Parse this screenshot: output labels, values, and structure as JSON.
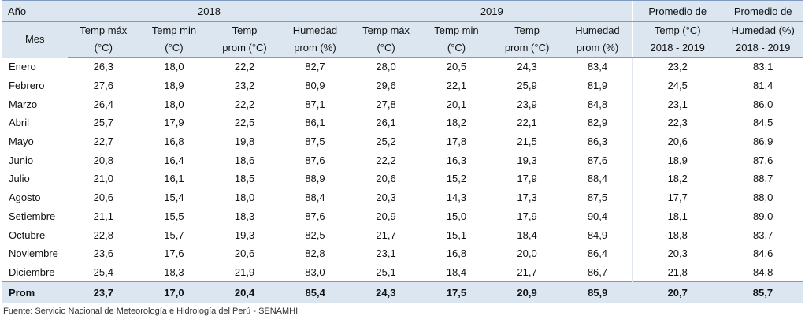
{
  "header": {
    "anio_label": "Año",
    "mes_label": "Mes",
    "year_2018": "2018",
    "year_2019": "2019",
    "prom_temp_top": "Promedio de",
    "prom_temp_mid": "Temp (°C)",
    "prom_temp_bot": "2018 - 2019",
    "prom_hum_top": "Promedio de",
    "prom_hum_mid": "Humedad (%)",
    "prom_hum_bot": "2018 - 2019",
    "cols": [
      {
        "top": "Temp máx",
        "bot": "(°C)"
      },
      {
        "top": "Temp min",
        "bot": "(°C)"
      },
      {
        "top": "Temp",
        "bot": "prom (°C)"
      },
      {
        "top": "Humedad",
        "bot": "prom (%)"
      },
      {
        "top": "Temp máx",
        "bot": "(°C)"
      },
      {
        "top": "Temp min",
        "bot": "(°C)"
      },
      {
        "top": "Temp",
        "bot": "prom (°C)"
      },
      {
        "top": "Humedad",
        "bot": "prom (%)"
      }
    ]
  },
  "rows": [
    {
      "mes": "Enero",
      "v": [
        "26,3",
        "18,0",
        "22,2",
        "82,7",
        "28,0",
        "20,5",
        "24,3",
        "83,4",
        "23,2",
        "83,1"
      ]
    },
    {
      "mes": "Febrero",
      "v": [
        "27,6",
        "18,9",
        "23,2",
        "80,9",
        "29,6",
        "22,1",
        "25,9",
        "81,9",
        "24,5",
        "81,4"
      ]
    },
    {
      "mes": "Marzo",
      "v": [
        "26,4",
        "18,0",
        "22,2",
        "87,1",
        "27,8",
        "20,1",
        "23,9",
        "84,8",
        "23,1",
        "86,0"
      ]
    },
    {
      "mes": "Abril",
      "v": [
        "25,7",
        "17,9",
        "22,5",
        "86,1",
        "26,1",
        "18,2",
        "22,1",
        "82,9",
        "22,3",
        "84,5"
      ]
    },
    {
      "mes": "Mayo",
      "v": [
        "22,7",
        "16,8",
        "19,8",
        "87,5",
        "25,2",
        "17,8",
        "21,5",
        "86,3",
        "20,6",
        "86,9"
      ]
    },
    {
      "mes": "Junio",
      "v": [
        "20,8",
        "16,4",
        "18,6",
        "87,6",
        "22,2",
        "16,3",
        "19,3",
        "87,6",
        "18,9",
        "87,6"
      ]
    },
    {
      "mes": "Julio",
      "v": [
        "21,0",
        "16,1",
        "18,5",
        "88,9",
        "20,6",
        "15,2",
        "17,9",
        "88,4",
        "18,2",
        "88,7"
      ]
    },
    {
      "mes": "Agosto",
      "v": [
        "20,6",
        "15,4",
        "18,0",
        "88,4",
        "20,3",
        "14,3",
        "17,3",
        "87,5",
        "17,7",
        "88,0"
      ]
    },
    {
      "mes": "Setiembre",
      "v": [
        "21,1",
        "15,5",
        "18,3",
        "87,6",
        "20,9",
        "15,0",
        "17,9",
        "90,4",
        "18,1",
        "89,0"
      ]
    },
    {
      "mes": "Octubre",
      "v": [
        "22,8",
        "15,7",
        "19,3",
        "82,5",
        "21,7",
        "15,1",
        "18,4",
        "84,9",
        "18,8",
        "83,7"
      ]
    },
    {
      "mes": "Noviembre",
      "v": [
        "23,6",
        "17,6",
        "20,6",
        "82,8",
        "23,1",
        "16,8",
        "20,0",
        "86,4",
        "20,3",
        "84,6"
      ]
    },
    {
      "mes": "Diciembre",
      "v": [
        "25,4",
        "18,3",
        "21,9",
        "83,0",
        "25,1",
        "18,4",
        "21,7",
        "86,7",
        "21,8",
        "84,8"
      ]
    }
  ],
  "footer": {
    "label": "Prom",
    "v": [
      "23,7",
      "17,0",
      "20,4",
      "85,4",
      "24,3",
      "17,5",
      "20,9",
      "85,9",
      "20,7",
      "85,7"
    ]
  },
  "source": "Fuente: Servicio Nacional de Meteorología e Hidrología del Perú - SENAMHI"
}
